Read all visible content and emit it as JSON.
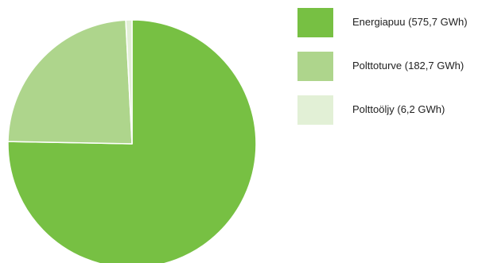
{
  "chart_data": {
    "type": "pie",
    "slices": [
      {
        "label": "Energiapuu (575,7 GWh)",
        "value": 575.7,
        "color": "#77c043"
      },
      {
        "label": "Polttoturve (182,7 GWh)",
        "value": 182.7,
        "color": "#aed58c"
      },
      {
        "label": "Polttoöljy (6,2 GWh)",
        "value": 6.2,
        "color": "#e2f0d6"
      }
    ],
    "legend": "right",
    "unit": "GWh"
  }
}
